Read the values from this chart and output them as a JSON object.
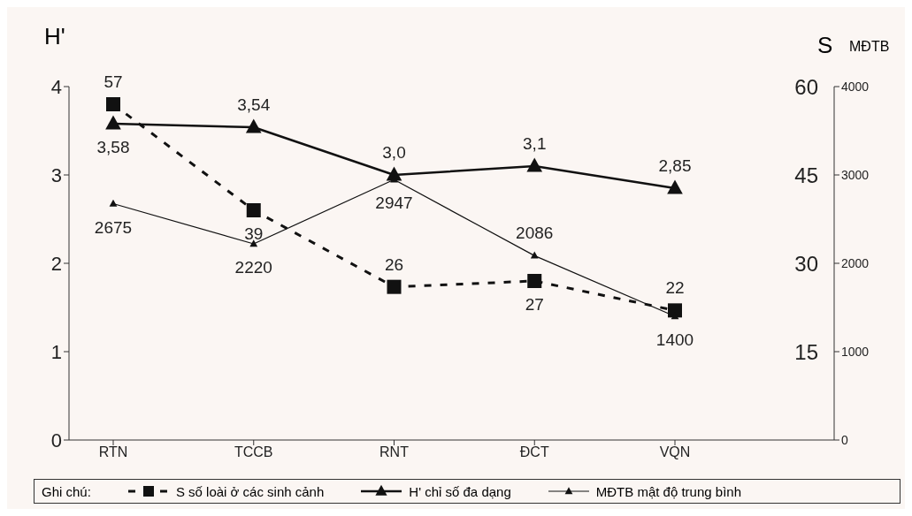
{
  "chart_data": {
    "type": "line",
    "ylabel": "H'",
    "y2label": "S",
    "y3label": "MĐTB",
    "legend_title": "Ghi chú:",
    "categories": [
      "RTN",
      "TCCB",
      "RNT",
      "ĐCT",
      "VQN"
    ],
    "ylim": [
      0,
      4
    ],
    "yticks": [
      0,
      1,
      2,
      3,
      4
    ],
    "y2lim": [
      0,
      60
    ],
    "y2ticks": [
      15,
      30,
      45,
      60
    ],
    "y3lim": [
      0,
      4000
    ],
    "y3ticks": [
      0,
      1000,
      2000,
      3000,
      4000
    ],
    "legend": "bottom",
    "series": [
      {
        "name": "S  số loài ở các sinh cảnh",
        "color": "#111111",
        "axis": "y2",
        "marker": "square",
        "line_style": "dashed",
        "values": [
          57,
          39,
          26,
          27,
          22
        ],
        "value_labels": [
          "57",
          "39",
          "26",
          "27",
          "22"
        ]
      },
      {
        "name": "H'  chỉ số đa dạng",
        "color": "#111111",
        "marker": "triangle",
        "line_style": "solid",
        "values": [
          3.58,
          3.54,
          3.0,
          3.1,
          2.85
        ],
        "value_labels": [
          "3,58",
          "3,54",
          "3,0",
          "3,1",
          "2,85"
        ]
      },
      {
        "name": "MĐTB  mật độ trung bình",
        "color": "#111111",
        "axis": "y3",
        "marker": "triangle",
        "line_style": "solid",
        "values": [
          2675,
          2220,
          2947,
          2086,
          1400
        ],
        "value_labels": [
          "2675",
          "2220",
          "2947",
          "2086",
          "1400"
        ]
      }
    ]
  }
}
